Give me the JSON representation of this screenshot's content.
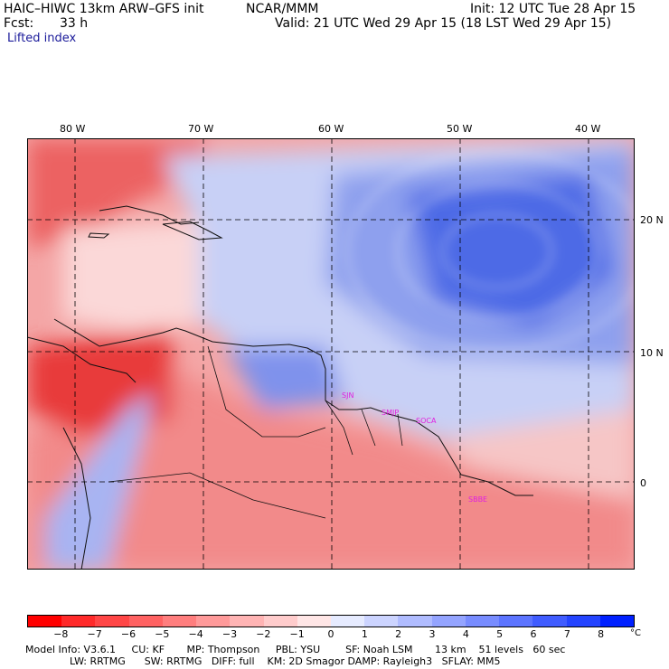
{
  "header": {
    "model": "HAIC–HIWC 13km ARW–GFS init",
    "org": "NCAR/MMM",
    "init": "Init: 12 UTC Tue 28 Apr 15",
    "fcst_label": "Fcst:",
    "fcst_value": "33 h",
    "valid": "Valid: 21 UTC Wed 29 Apr 15 (18 LST Wed 29 Apr 15)",
    "field": "Lifted index"
  },
  "map": {
    "lon_labels": [
      "80 W",
      "70 W",
      "60 W",
      "50 W",
      "40 W"
    ],
    "lat_labels": [
      "20 N",
      "10 N",
      "0"
    ],
    "city_labels": [
      "SJN",
      "SMJP",
      "SOCA",
      "SBBE"
    ],
    "colors": {
      "warm_strong": "#e8303a",
      "warm": "#f07a7a",
      "warm_light": "#f8c0c0",
      "cool_light": "#cdd6f8",
      "cool": "#8c9ef0",
      "cool_strong": "#3a5ce8"
    }
  },
  "colorbar": {
    "labels": [
      "−8",
      "−7",
      "−6",
      "−5",
      "−4",
      "−3",
      "−2",
      "−1",
      "0",
      "1",
      "2",
      "3",
      "4",
      "5",
      "6",
      "7",
      "8"
    ],
    "unit": "°C",
    "colors": [
      "#ff0000",
      "#ff2a2a",
      "#ff4646",
      "#ff6262",
      "#ff7e7e",
      "#ff9a9a",
      "#ffb4b4",
      "#ffcccc",
      "#ffe6e6",
      "#e6ebff",
      "#ccd4ff",
      "#b0bcff",
      "#94a4ff",
      "#788cff",
      "#5c74ff",
      "#405cff",
      "#2444ff",
      "#0020ff"
    ]
  },
  "footer": {
    "line1": "Model Info: V3.6.1     CU: KF       MP: Thompson     PBL: YSU        SF: Noah LSM       13 km    51 levels   60 sec",
    "line2": "              LW: RRTMG      SW: RRTMG   DIFF: full    KM: 2D Smagor DAMP: Rayleigh3   SFLAY: MM5"
  }
}
